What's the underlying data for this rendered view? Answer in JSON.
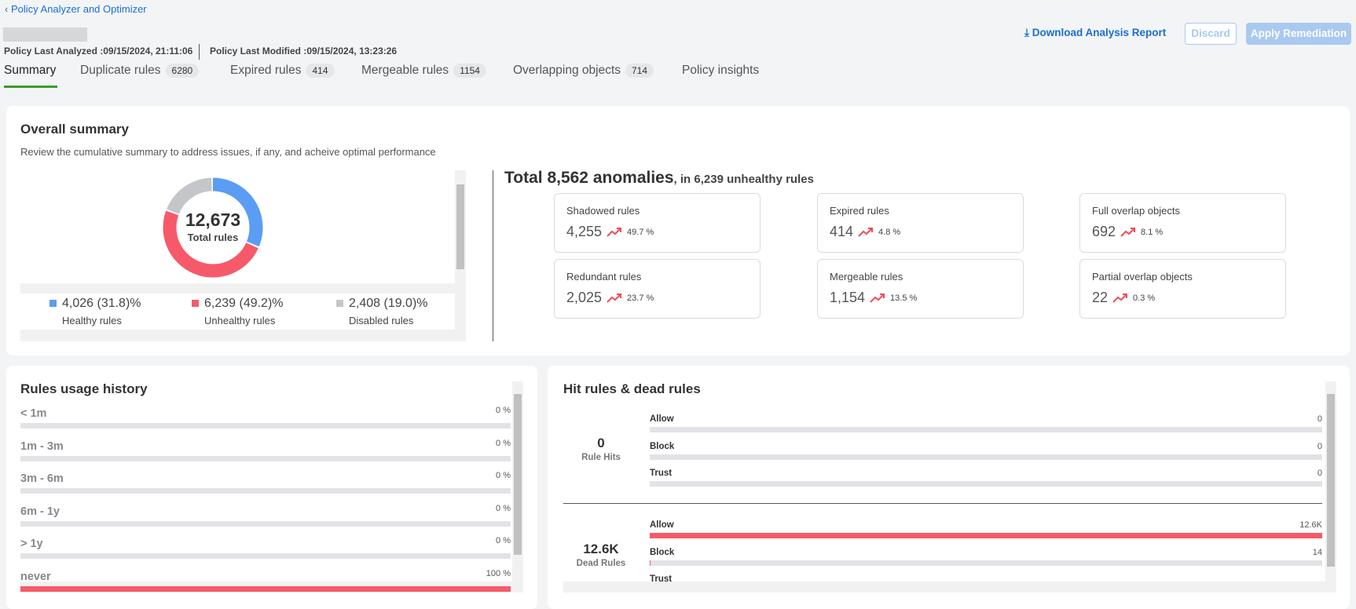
{
  "header": {
    "back_link": "Policy Analyzer and Optimizer",
    "last_analyzed": "Policy Last Analyzed :09/15/2024, 21:11:06",
    "last_modified": "Policy Last Modified :09/15/2024, 13:23:26",
    "download": "Download Analysis Report",
    "discard": "Discard",
    "apply": "Apply Remediation"
  },
  "tabs": [
    {
      "label": "Summary"
    },
    {
      "label": "Duplicate rules",
      "count": 6280
    },
    {
      "label": "Expired rules",
      "count": 414
    },
    {
      "label": "Mergeable rules",
      "count": 1154
    },
    {
      "label": "Overlapping objects",
      "count": 714
    },
    {
      "label": "Policy insights"
    }
  ],
  "overall": {
    "title": "Overall summary",
    "subtitle": "Review the cumulative summary to address issues, if any, and acheive optimal performance",
    "donut": {
      "total": "12,673",
      "total_label": "Total rules",
      "segments": [
        {
          "name": "Healthy rules",
          "value": 4026,
          "label": "4,026 (31.8)%",
          "color": "#5b9cf5"
        },
        {
          "name": "Unhealthy rules",
          "value": 6239,
          "label": "6,239 (49.2)%",
          "color": "#f65a6a"
        },
        {
          "name": "Disabled rules",
          "value": 2408,
          "label": "2,408 (19.0)%",
          "color": "#c4c6c9"
        }
      ]
    },
    "anomalies": {
      "headline": "Total 8,562 anomalies",
      "sub": ", in 6,239 unhealthy rules",
      "cards": [
        {
          "name": "Shadowed rules",
          "value": "4,255",
          "change": "49.7 %"
        },
        {
          "name": "Expired rules",
          "value": "414",
          "change": "4.8 %"
        },
        {
          "name": "Full overlap objects",
          "value": "692",
          "change": "8.1 %"
        },
        {
          "name": "Redundant rules",
          "value": "2,025",
          "change": "23.7 %"
        },
        {
          "name": "Mergeable rules",
          "value": "1,154",
          "change": "13.5 %"
        },
        {
          "name": "Partial overlap objects",
          "value": "22",
          "change": "0.3 %"
        }
      ]
    }
  },
  "usage": {
    "title": "Rules usage history",
    "rows": [
      {
        "name": "< 1m",
        "value": 0,
        "label": "0 %"
      },
      {
        "name": "1m - 3m",
        "value": 0,
        "label": "0 %"
      },
      {
        "name": "3m - 6m",
        "value": 0,
        "label": "0 %"
      },
      {
        "name": "6m - 1y",
        "value": 0,
        "label": "0 %"
      },
      {
        "name": "> 1y",
        "value": 0,
        "label": "0 %"
      },
      {
        "name": "never",
        "value": 100,
        "label": "100 %"
      }
    ]
  },
  "hits": {
    "title": "Hit rules & dead rules",
    "groups": [
      {
        "value": "0",
        "name": "Rule Hits",
        "bars": [
          {
            "name": "Allow",
            "value": 0
          },
          {
            "name": "Block",
            "value": 0
          },
          {
            "name": "Trust",
            "value": 0
          }
        ]
      },
      {
        "value": "12.6K",
        "name": "Dead Rules",
        "bars": [
          {
            "name": "Allow",
            "value": 12600,
            "label": "12.6K"
          },
          {
            "name": "Block",
            "value": 14
          },
          {
            "name": "Trust"
          }
        ]
      }
    ]
  }
}
